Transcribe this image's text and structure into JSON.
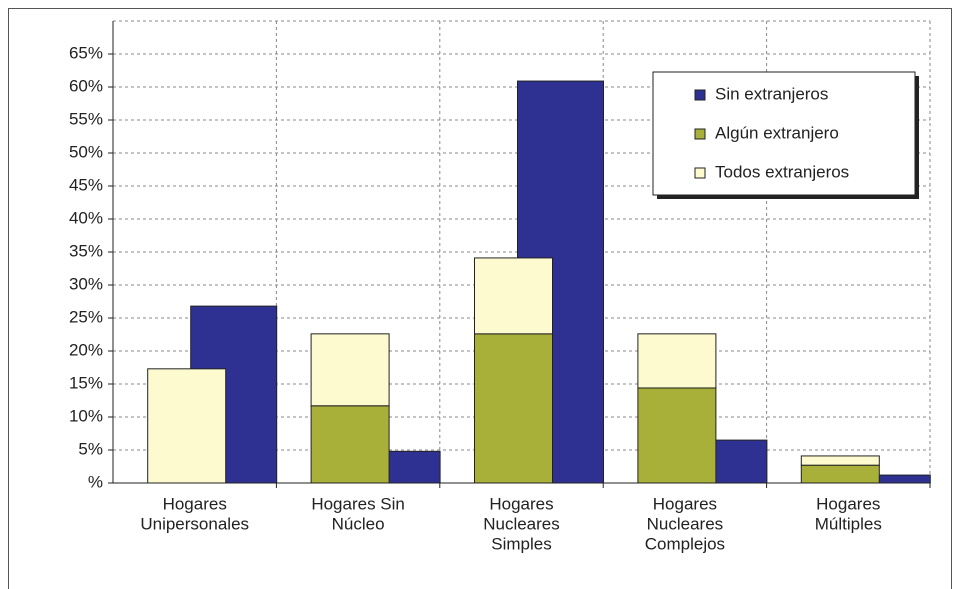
{
  "chart_data": {
    "type": "bar",
    "categories": [
      [
        "Hogares",
        "Unipersonales"
      ],
      [
        "Hogares Sin",
        "Núcleo"
      ],
      [
        "Hogares",
        "Nucleares",
        "Simples"
      ],
      [
        "Hogares",
        "Nucleares",
        "Complejos"
      ],
      [
        "Hogares",
        "Múltiples"
      ]
    ],
    "series": [
      {
        "name": "Sin extranjeros",
        "color": "#2e3192",
        "values": [
          26.8,
          4.8,
          60.9,
          6.5,
          1.2
        ]
      },
      {
        "name": "Algún extranjero",
        "color": "#a8b03a",
        "values": [
          0,
          11.7,
          22.6,
          14.4,
          2.7
        ]
      },
      {
        "name": "Todos extranjeros",
        "color": "#fdfad0",
        "values": [
          17.3,
          10.9,
          11.5,
          8.2,
          1.4
        ]
      }
    ],
    "ylim": [
      0,
      70
    ],
    "yticks": [
      {
        "value": 0,
        "label": "%"
      },
      {
        "value": 5,
        "label": "5%"
      },
      {
        "value": 10,
        "label": "10%"
      },
      {
        "value": 15,
        "label": "15%"
      },
      {
        "value": 20,
        "label": "20%"
      },
      {
        "value": 25,
        "label": "25%"
      },
      {
        "value": 30,
        "label": "30%"
      },
      {
        "value": 35,
        "label": "35%"
      },
      {
        "value": 40,
        "label": "40%"
      },
      {
        "value": 45,
        "label": "45%"
      },
      {
        "value": 50,
        "label": "50%"
      },
      {
        "value": 55,
        "label": "55%"
      },
      {
        "value": 60,
        "label": "60%"
      },
      {
        "value": 65,
        "label": "65%"
      }
    ],
    "grid": true,
    "legend": "upper right"
  }
}
